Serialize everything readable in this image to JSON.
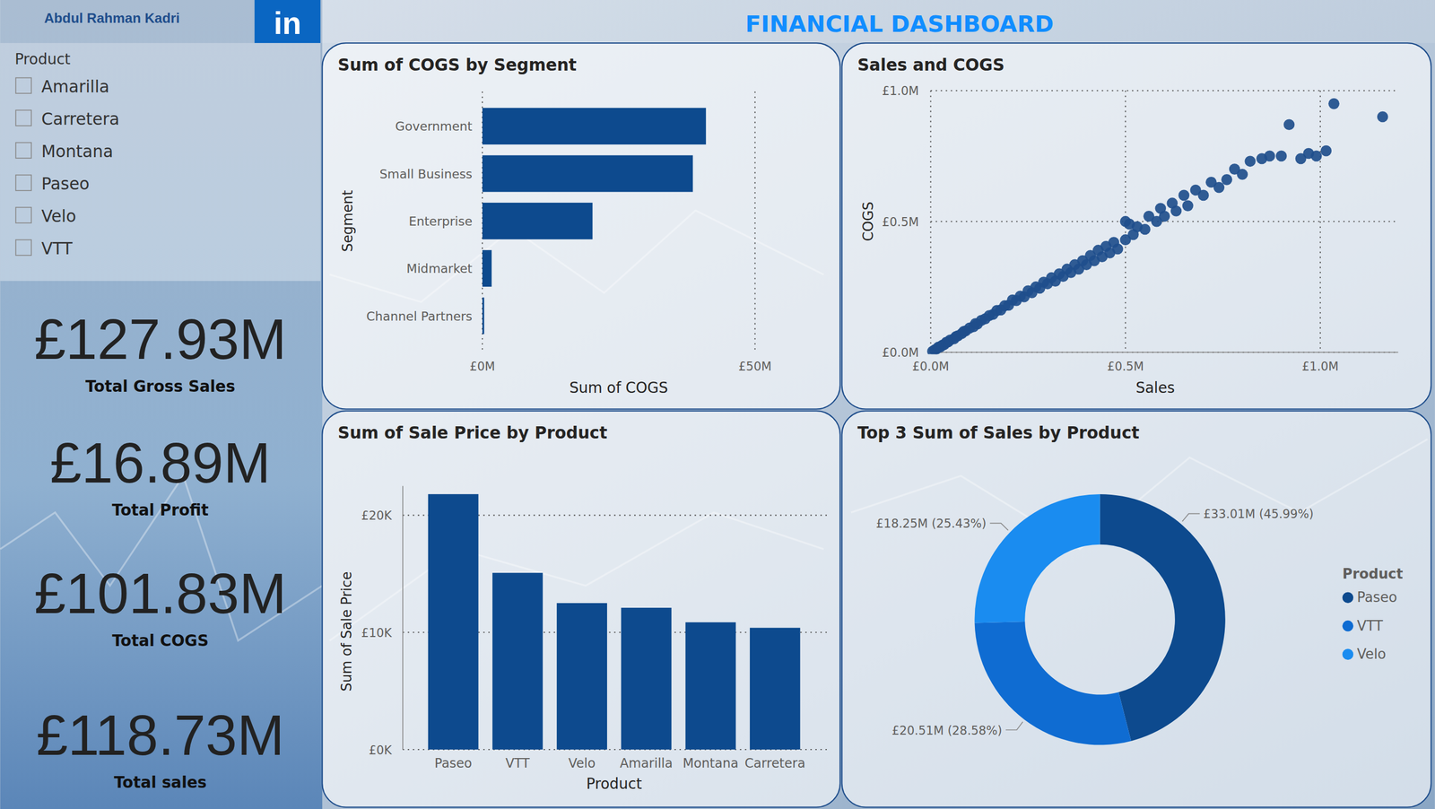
{
  "header": {
    "author": "Abdul Rahman Kadri",
    "logo": "in",
    "title": "FINANCIAL DASHBOARD"
  },
  "slicer": {
    "title": "Product",
    "items": [
      "Amarilla",
      "Carretera",
      "Montana",
      "Paseo",
      "Velo",
      "VTT"
    ]
  },
  "kpis": [
    {
      "value": "£127.93M",
      "label": "Total Gross Sales"
    },
    {
      "value": "£16.89M",
      "label": "Total Profit"
    },
    {
      "value": "£101.83M",
      "label": "Total COGS"
    },
    {
      "value": "£118.73M",
      "label": "Total sales"
    }
  ],
  "chart_data": [
    {
      "type": "bar",
      "orientation": "horizontal",
      "title": "Sum of COGS by Segment",
      "xlabel": "Sum of COGS",
      "ylabel": "Segment",
      "categories": [
        "Government",
        "Small Business",
        "Enterprise",
        "Midmarket",
        "Channel Partners"
      ],
      "values": [
        41.0,
        38.6,
        20.2,
        1.7,
        0.33
      ],
      "color": "#0d4a8e",
      "xlim": [
        0,
        50
      ],
      "xticks": [
        {
          "value": 0,
          "label": "£0M"
        },
        {
          "value": 50,
          "label": "£50M"
        }
      ],
      "grid": true
    },
    {
      "type": "scatter",
      "title": "Sales and COGS",
      "xlabel": "Sales",
      "ylabel": "COGS",
      "marker": "circle",
      "color": "#1f4e8c",
      "x": [
        0.005,
        0.01,
        0.015,
        0.02,
        0.025,
        0.03,
        0.035,
        0.04,
        0.045,
        0.05,
        0.06,
        0.065,
        0.07,
        0.08,
        0.085,
        0.09,
        0.1,
        0.11,
        0.115,
        0.12,
        0.13,
        0.14,
        0.15,
        0.16,
        0.17,
        0.18,
        0.19,
        0.2,
        0.21,
        0.22,
        0.23,
        0.24,
        0.25,
        0.26,
        0.27,
        0.28,
        0.29,
        0.3,
        0.31,
        0.32,
        0.33,
        0.34,
        0.35,
        0.36,
        0.37,
        0.38,
        0.39,
        0.4,
        0.41,
        0.42,
        0.43,
        0.44,
        0.45,
        0.46,
        0.47,
        0.48,
        0.5,
        0.5,
        0.51,
        0.52,
        0.53,
        0.55,
        0.56,
        0.58,
        0.59,
        0.6,
        0.62,
        0.63,
        0.65,
        0.66,
        0.68,
        0.7,
        0.72,
        0.74,
        0.76,
        0.78,
        0.8,
        0.82,
        0.85,
        0.87,
        0.9,
        0.92,
        0.95,
        0.97,
        0.99,
        1.015,
        1.035,
        1.16
      ],
      "values": [
        0.004,
        0.009,
        0.013,
        0.02,
        0.021,
        0.027,
        0.03,
        0.038,
        0.04,
        0.047,
        0.052,
        0.06,
        0.063,
        0.072,
        0.08,
        0.082,
        0.093,
        0.098,
        0.11,
        0.108,
        0.122,
        0.128,
        0.14,
        0.145,
        0.16,
        0.162,
        0.178,
        0.18,
        0.2,
        0.198,
        0.215,
        0.212,
        0.235,
        0.228,
        0.25,
        0.245,
        0.268,
        0.262,
        0.285,
        0.272,
        0.3,
        0.29,
        0.318,
        0.305,
        0.335,
        0.318,
        0.35,
        0.335,
        0.37,
        0.35,
        0.39,
        0.365,
        0.405,
        0.38,
        0.42,
        0.395,
        0.43,
        0.5,
        0.49,
        0.45,
        0.48,
        0.47,
        0.52,
        0.5,
        0.55,
        0.52,
        0.57,
        0.54,
        0.6,
        0.56,
        0.62,
        0.6,
        0.65,
        0.63,
        0.66,
        0.7,
        0.68,
        0.73,
        0.74,
        0.75,
        0.75,
        0.87,
        0.74,
        0.76,
        0.75,
        0.77,
        0.95,
        0.9
      ],
      "xlim": [
        0,
        1.2
      ],
      "xticks": [
        {
          "value": 0,
          "label": "£0.0M"
        },
        {
          "value": 0.5,
          "label": "£0.5M"
        },
        {
          "value": 1,
          "label": "£1.0M"
        }
      ],
      "ylim": [
        0,
        1
      ],
      "yticks": [
        {
          "value": 0,
          "label": "£0.0M"
        },
        {
          "value": 0.5,
          "label": "£0.5M"
        },
        {
          "value": 1,
          "label": "£1.0M"
        }
      ],
      "grid": true
    },
    {
      "type": "bar",
      "title": "Sum of Sale Price by Product",
      "xlabel": "Product",
      "ylabel": "Sum of Sale Price",
      "categories": [
        "Paseo",
        "VTT",
        "Velo",
        "Amarilla",
        "Montana",
        "Carretera"
      ],
      "values": [
        21800,
        15080,
        12500,
        12100,
        10860,
        10390
      ],
      "color": "#0d4a8e",
      "ylim": [
        0,
        22500
      ],
      "yticks": [
        {
          "value": 0,
          "label": "£0K"
        },
        {
          "value": 10000,
          "label": "£10K"
        },
        {
          "value": 20000,
          "label": "£20K"
        }
      ],
      "grid": true
    },
    {
      "type": "donut",
      "title": "Top 3 Sum of Sales by Product",
      "legend_title": "Product",
      "categories": [
        "Paseo",
        "VTT",
        "Velo"
      ],
      "values": [
        33.01,
        20.51,
        18.25
      ],
      "value_labels": [
        "£33.01M (45.99%)",
        "£20.51M (28.58%)",
        "£18.25M (25.43%)"
      ],
      "colors": [
        "#0d4a8e",
        "#0f6cd2",
        "#1a8cf0"
      ],
      "legend": "right",
      "data_labels": true
    }
  ]
}
